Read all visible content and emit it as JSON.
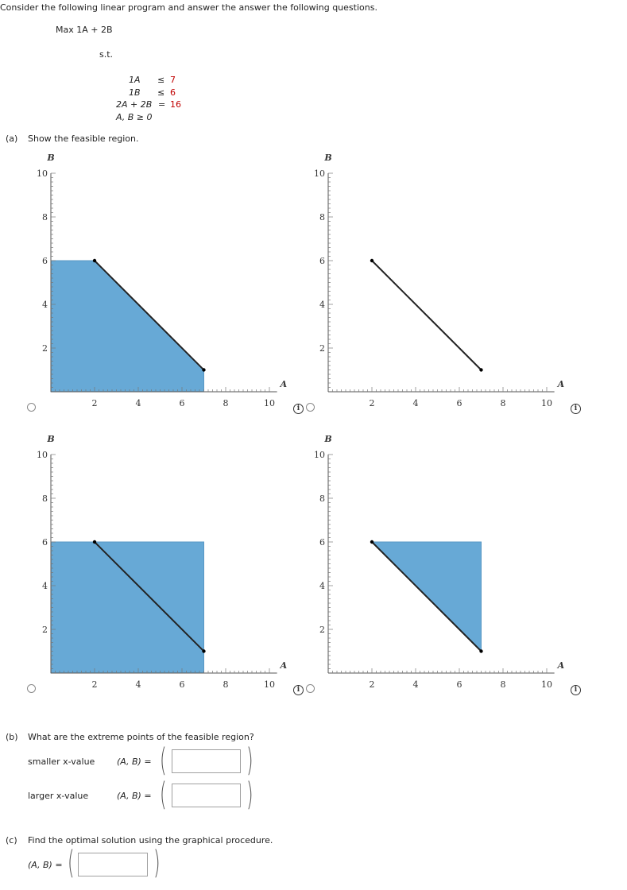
{
  "intro": "Consider the following linear program and answer the answer the following questions.",
  "objective": "Max 1A + 2B",
  "st": "s.t.",
  "constraints": [
    {
      "lhs": "1A",
      "op": "≤",
      "rhs": "7"
    },
    {
      "lhs": "1B",
      "op": "≤",
      "rhs": "6"
    },
    {
      "lhs": "2A + 2B",
      "op": "=",
      "rhs": "16"
    },
    {
      "lhs": "A, B ≥ 0",
      "op": "",
      "rhs": ""
    }
  ],
  "part_a": {
    "label": "(a)",
    "text": "Show the feasible region."
  },
  "axes": {
    "x_label": "A",
    "y_label": "B",
    "ticks": [
      "2",
      "4",
      "6",
      "8",
      "10"
    ],
    "range": [
      0,
      10
    ]
  },
  "options": [
    {
      "id": "option-1",
      "fill": [
        [
          0,
          0
        ],
        [
          0,
          6
        ],
        [
          2,
          6
        ],
        [
          7,
          1
        ],
        [
          7,
          0
        ]
      ],
      "line": [
        [
          2,
          6
        ],
        [
          7,
          1
        ]
      ]
    },
    {
      "id": "option-2",
      "fill": [],
      "line": [
        [
          2,
          6
        ],
        [
          7,
          1
        ]
      ]
    },
    {
      "id": "option-3",
      "fill": [
        [
          0,
          0
        ],
        [
          0,
          6
        ],
        [
          7,
          6
        ],
        [
          7,
          0
        ]
      ],
      "line": [
        [
          2,
          6
        ],
        [
          7,
          1
        ]
      ]
    },
    {
      "id": "option-4",
      "fill": [
        [
          2,
          6
        ],
        [
          7,
          6
        ],
        [
          7,
          1
        ]
      ],
      "line": [
        [
          2,
          6
        ],
        [
          7,
          1
        ]
      ]
    }
  ],
  "colors": {
    "fill": "#67a9d6",
    "line": "#222222",
    "red": "#c00000"
  },
  "part_b": {
    "label": "(b)",
    "text": "What are the extreme points of the feasible region?",
    "rows": [
      {
        "label": "smaller x-value",
        "prefix": "(A, B)  =",
        "value": ""
      },
      {
        "label": "larger x-value",
        "prefix": "(A, B)  =",
        "value": ""
      }
    ]
  },
  "part_c": {
    "label": "(c)",
    "text": "Find the optimal solution using the graphical procedure.",
    "prefix": "(A, B) =",
    "value": ""
  },
  "icons": {
    "info": "info-icon",
    "radio": "radio-button"
  },
  "info_glyph": "i"
}
